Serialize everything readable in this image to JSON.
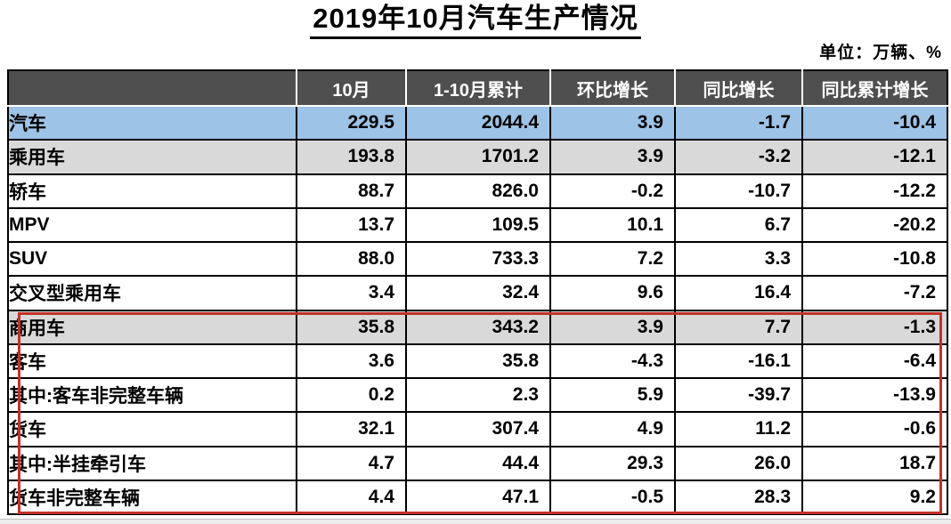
{
  "chart_data": {
    "type": "table",
    "title": "2019年10月汽车生产情况",
    "unit_note": "单位：万辆、%",
    "columns": [
      "",
      "10月",
      "1-10月累计",
      "环比增长",
      "同比增长",
      "同比累计增长"
    ],
    "rows": [
      {
        "label": "汽车",
        "indent": 0,
        "row_style": "blue",
        "values": [
          "229.5",
          "2044.4",
          "3.9",
          "-1.7",
          "-10.4"
        ]
      },
      {
        "label": "乘用车",
        "indent": 1,
        "row_style": "gray",
        "values": [
          "193.8",
          "1701.2",
          "3.9",
          "-3.2",
          "-12.1"
        ]
      },
      {
        "label": "轿车",
        "indent": 2,
        "row_style": "white",
        "values": [
          "88.7",
          "826.0",
          "-0.2",
          "-10.7",
          "-12.2"
        ]
      },
      {
        "label": "MPV",
        "indent": 2,
        "row_style": "white",
        "values": [
          "13.7",
          "109.5",
          "10.1",
          "6.7",
          "-20.2"
        ]
      },
      {
        "label": "SUV",
        "indent": 2,
        "row_style": "white",
        "values": [
          "88.0",
          "733.3",
          "7.2",
          "3.3",
          "-10.8"
        ]
      },
      {
        "label": "交叉型乘用车",
        "indent": 2,
        "row_style": "white",
        "values": [
          "3.4",
          "32.4",
          "9.6",
          "16.4",
          "-7.2"
        ]
      },
      {
        "label": "商用车",
        "indent": 1,
        "row_style": "gray",
        "values": [
          "35.8",
          "343.2",
          "3.9",
          "7.7",
          "-1.3"
        ]
      },
      {
        "label": "客车",
        "indent": 2,
        "row_style": "white",
        "values": [
          "3.6",
          "35.8",
          "-4.3",
          "-16.1",
          "-6.4"
        ]
      },
      {
        "label": "其中:客车非完整车辆",
        "indent": 3,
        "row_style": "white",
        "values": [
          "0.2",
          "2.3",
          "5.9",
          "-39.7",
          "-13.9"
        ]
      },
      {
        "label": "货车",
        "indent": 2,
        "row_style": "white",
        "values": [
          "32.1",
          "307.4",
          "4.9",
          "11.2",
          "-0.6"
        ]
      },
      {
        "label": "其中:半挂牵引车",
        "indent": 3,
        "row_style": "white",
        "values": [
          "4.7",
          "44.4",
          "29.3",
          "26.0",
          "18.7"
        ]
      },
      {
        "label": "货车非完整车辆",
        "indent": 3,
        "row_style": "white",
        "values": [
          "4.4",
          "47.1",
          "-0.5",
          "28.3",
          "9.2"
        ]
      }
    ],
    "highlight_box": {
      "from_row": "商用车",
      "to_row": "货车非完整车辆",
      "note": "red rectangle annotation around commercial vehicle section"
    },
    "layout_hints": {
      "grid": "on",
      "header_position": "top",
      "value_alignment": "right"
    }
  },
  "colors": {
    "header_bg": "#4F4F4F",
    "header_text": "#FFFFFF",
    "row_blue": "#9DC3E6",
    "row_gray": "#D9D9D9",
    "row_white": "#FFFFFF",
    "grid_border": "#000000",
    "red_box": "#C2312B"
  }
}
